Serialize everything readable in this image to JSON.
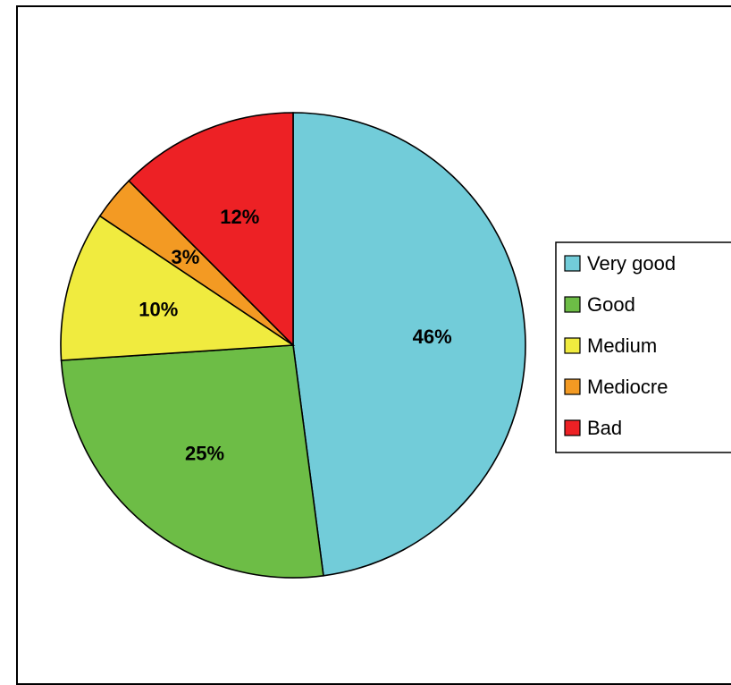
{
  "chart_data": {
    "type": "pie",
    "labels": [
      "Very good",
      "Good",
      "Medium",
      "Mediocre",
      "Bad"
    ],
    "values": [
      46,
      25,
      10,
      3,
      12
    ],
    "value_labels": [
      "46%",
      "25%",
      "10%",
      "3%",
      "12%"
    ],
    "colors": [
      "#72ccd9",
      "#6dbd46",
      "#f0eb3f",
      "#f39a23",
      "#ed2125"
    ],
    "legend_position": "right",
    "start_angle": "top",
    "direction": "clockwise"
  }
}
